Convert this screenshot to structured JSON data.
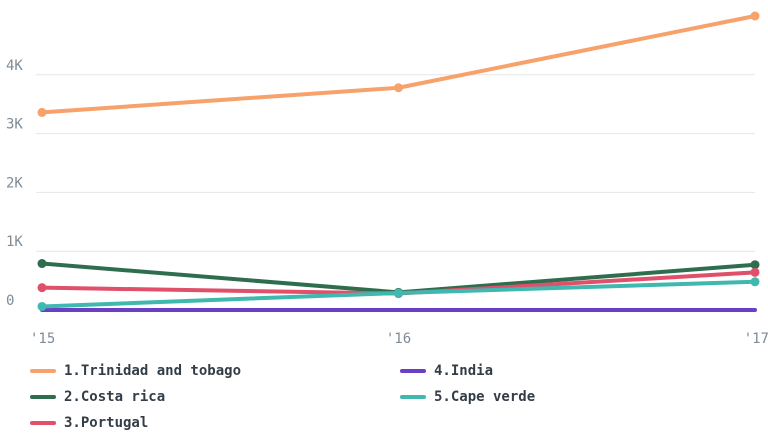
{
  "chart_data": {
    "type": "line",
    "x": [
      "'15",
      "'16",
      "'17"
    ],
    "ylim": [
      0,
      5000
    ],
    "yticks": [
      {
        "value": 0,
        "label": "0"
      },
      {
        "value": 1000,
        "label": "1K"
      },
      {
        "value": 2000,
        "label": "2K"
      },
      {
        "value": 3000,
        "label": "3K"
      },
      {
        "value": 4000,
        "label": "4K"
      }
    ],
    "grid": true,
    "legend_position": "bottom",
    "series": [
      {
        "name": "1.Trinidad and tobago",
        "color": "#f7a26b",
        "values": [
          3360,
          3780,
          5000
        ]
      },
      {
        "name": "2.Costa rica",
        "color": "#2e6e4f",
        "values": [
          790,
          300,
          770
        ]
      },
      {
        "name": "3.Portugal",
        "color": "#e0506a",
        "values": [
          380,
          280,
          640
        ]
      },
      {
        "name": "4.India",
        "color": "#6a3fc4",
        "values": [
          0,
          0,
          0
        ]
      },
      {
        "name": "5.Cape verde",
        "color": "#3fb8b0",
        "values": [
          60,
          290,
          480
        ]
      }
    ]
  }
}
